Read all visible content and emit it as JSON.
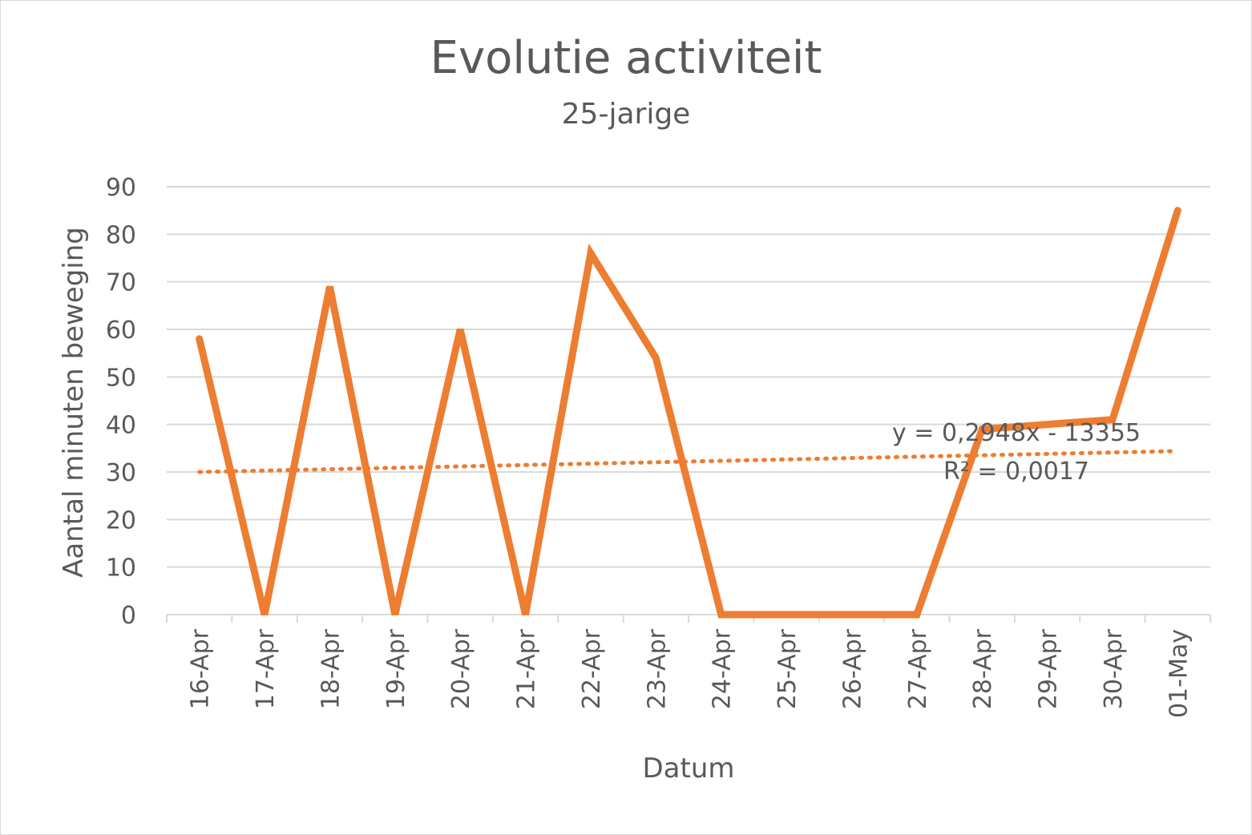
{
  "chart_data": {
    "type": "line",
    "title": "Evolutie activiteit",
    "subtitle": "25-jarige",
    "xlabel": "Datum",
    "ylabel": "Aantal minuten beweging",
    "categories": [
      "16-Apr",
      "17-Apr",
      "18-Apr",
      "19-Apr",
      "20-Apr",
      "21-Apr",
      "22-Apr",
      "23-Apr",
      "24-Apr",
      "25-Apr",
      "26-Apr",
      "27-Apr",
      "28-Apr",
      "29-Apr",
      "30-Apr",
      "01-May"
    ],
    "series": [
      {
        "values": [
          58,
          0,
          69,
          0,
          60,
          0,
          76,
          54,
          0,
          0,
          0,
          0,
          39,
          40,
          41,
          85
        ],
        "color": "#ed7d31"
      }
    ],
    "trendline": {
      "type": "linear",
      "start": 30,
      "end": 34.4,
      "equation": "y = 0,2948x - 13355",
      "r_squared": "R² = 0,0017",
      "color": "#ed7d31",
      "style": "dotted"
    },
    "ylim": [
      0,
      90
    ],
    "yticks": [
      "0",
      "10",
      "20",
      "30",
      "40",
      "50",
      "60",
      "70",
      "80",
      "90"
    ],
    "grid": true,
    "legend": "none"
  }
}
